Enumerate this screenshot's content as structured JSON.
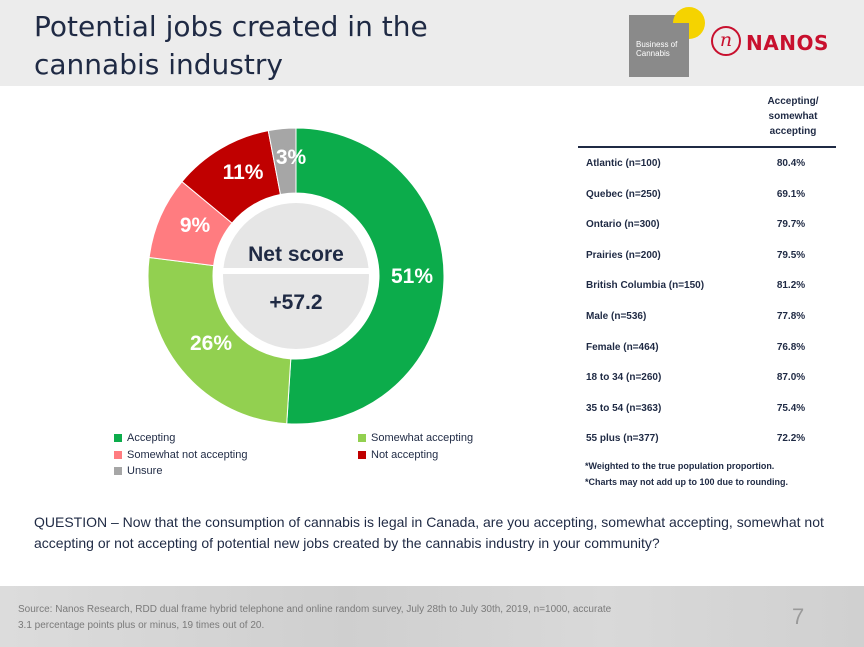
{
  "title": "Potential jobs created in the cannabis industry",
  "logos": {
    "boc_text": "Business of Cannabis",
    "nanos_mark": "n",
    "nanos_text": "NANOS"
  },
  "colors": {
    "accepting": "#0cac4b",
    "somewhat_accepting": "#92d050",
    "somewhat_not_accepting": "#ff7c80",
    "not_accepting": "#c00000",
    "unsure": "#a6a6a6",
    "text": "#1f2a44"
  },
  "chart_data": {
    "type": "pie",
    "variant": "donut",
    "center_label": "Net score",
    "center_value": "+57.2",
    "slices": [
      {
        "name": "Accepting",
        "value": 51,
        "label": "51%",
        "color": "#0cac4b"
      },
      {
        "name": "Somewhat accepting",
        "value": 26,
        "label": "26%",
        "color": "#92d050"
      },
      {
        "name": "Somewhat not accepting",
        "value": 9,
        "label": "9%",
        "color": "#ff7c80"
      },
      {
        "name": "Not accepting",
        "value": 11,
        "label": "11%",
        "color": "#c00000"
      },
      {
        "name": "Unsure",
        "value": 3,
        "label": "3%",
        "color": "#a6a6a6"
      }
    ],
    "legend": [
      {
        "name": "Accepting",
        "color": "#0cac4b"
      },
      {
        "name": "Somewhat accepting",
        "color": "#92d050"
      },
      {
        "name": "Somewhat not accepting",
        "color": "#ff7c80"
      },
      {
        "name": "Not accepting",
        "color": "#c00000"
      },
      {
        "name": "Unsure",
        "color": "#a6a6a6"
      }
    ],
    "legend_position": "bottom"
  },
  "table": {
    "header": "Accepting/ somewhat accepting",
    "rows": [
      {
        "label": "Atlantic (n=100)",
        "value": "80.4%"
      },
      {
        "label": "Quebec (n=250)",
        "value": "69.1%"
      },
      {
        "label": "Ontario (n=300)",
        "value": "79.7%"
      },
      {
        "label": "Prairies (n=200)",
        "value": "79.5%"
      },
      {
        "label": "British Columbia (n=150)",
        "value": "81.2%"
      },
      {
        "label": "Male (n=536)",
        "value": "77.8%"
      },
      {
        "label": "Female (n=464)",
        "value": "76.8%"
      },
      {
        "label": "18 to 34 (n=260)",
        "value": "87.0%"
      },
      {
        "label": "35 to 54 (n=363)",
        "value": "75.4%"
      },
      {
        "label": "55 plus (n=377)",
        "value": "72.2%"
      }
    ]
  },
  "footnotes": [
    "*Weighted to the true population proportion.",
    "*Charts may not add up to 100 due to rounding."
  ],
  "question": "QUESTION – Now that the consumption of cannabis is legal in Canada, are you accepting, somewhat accepting, somewhat not accepting or not accepting of potential new jobs created by the cannabis industry in your community?",
  "source": "Source: Nanos Research, RDD dual frame hybrid telephone and online random survey, July 28th to July 30th, 2019, n=1000, accurate 3.1 percentage points plus or minus, 19 times out of 20.",
  "page_number": "7"
}
